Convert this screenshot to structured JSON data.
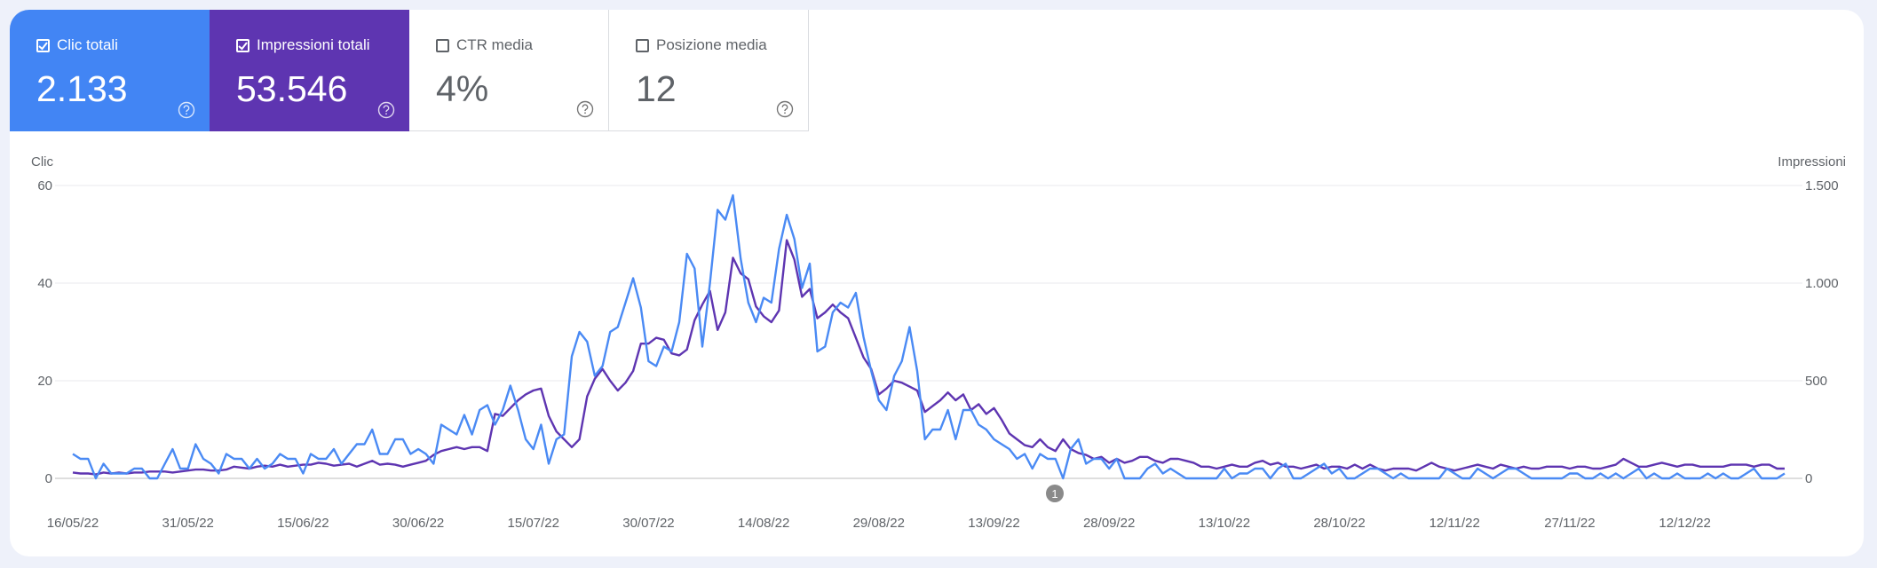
{
  "metrics": [
    {
      "label": "Clic totali",
      "value": "2.133",
      "checked": true,
      "color": "#4285f4"
    },
    {
      "label": "Impressioni totali",
      "value": "53.546",
      "checked": true,
      "color": "#5e35b1"
    },
    {
      "label": "CTR media",
      "value": "4%",
      "checked": false,
      "color": "#ffffff"
    },
    {
      "label": "Posizione media",
      "value": "12",
      "checked": false,
      "color": "#ffffff"
    }
  ],
  "chart_data": {
    "type": "line",
    "y_label": "Clic",
    "y2_label": "Impressioni",
    "annotation": "1",
    "categories": [
      "16/05/22",
      null,
      null,
      null,
      null,
      null,
      null,
      null,
      null,
      null,
      null,
      null,
      null,
      null,
      null,
      "31/05/22",
      null,
      null,
      null,
      null,
      null,
      null,
      null,
      null,
      null,
      null,
      null,
      null,
      null,
      null,
      "15/06/22",
      null,
      null,
      null,
      null,
      null,
      null,
      null,
      null,
      null,
      null,
      null,
      null,
      null,
      null,
      "30/06/22",
      null,
      null,
      null,
      null,
      null,
      null,
      null,
      null,
      null,
      null,
      null,
      null,
      null,
      null,
      "15/07/22",
      null,
      null,
      null,
      null,
      null,
      null,
      null,
      null,
      null,
      null,
      null,
      null,
      null,
      null,
      "30/07/22",
      null,
      null,
      null,
      null,
      null,
      null,
      null,
      null,
      null,
      null,
      null,
      null,
      null,
      null,
      "14/08/22",
      null,
      null,
      null,
      null,
      null,
      null,
      null,
      null,
      null,
      null,
      null,
      null,
      null,
      null,
      "29/08/22",
      null,
      null,
      null,
      null,
      null,
      null,
      null,
      null,
      null,
      null,
      null,
      null,
      null,
      null,
      "13/09/22",
      null,
      null,
      null,
      null,
      null,
      null,
      null,
      null,
      null,
      null,
      null,
      null,
      null,
      null,
      "28/09/22",
      null,
      null,
      null,
      null,
      null,
      null,
      null,
      null,
      null,
      null,
      null,
      null,
      null,
      null,
      "13/10/22",
      null,
      null,
      null,
      null,
      null,
      null,
      null,
      null,
      null,
      null,
      null,
      null,
      null,
      null,
      "28/10/22",
      null,
      null,
      null,
      null,
      null,
      null,
      null,
      null,
      null,
      null,
      null,
      null,
      null,
      null,
      "12/11/22",
      null,
      null,
      null,
      null,
      null,
      null,
      null,
      null,
      null,
      null,
      null,
      null,
      null,
      null,
      "27/11/22",
      null,
      null,
      null,
      null,
      null,
      null,
      null,
      null,
      null,
      null,
      null,
      null,
      null,
      null,
      "12/12/22",
      null,
      null,
      null,
      null,
      null,
      null,
      null,
      null,
      null,
      null,
      null,
      null,
      null
    ],
    "series": [
      {
        "name": "Clic",
        "color": "#4a8af4",
        "axis": "y",
        "values": [
          5,
          4,
          4,
          0,
          3,
          1,
          1,
          1,
          2,
          2,
          0,
          0,
          3,
          6,
          2,
          2,
          7,
          4,
          3,
          1,
          5,
          4,
          4,
          2,
          4,
          2,
          3,
          5,
          4,
          4,
          1,
          5,
          4,
          4,
          6,
          3,
          5,
          7,
          7,
          10,
          5,
          5,
          8,
          8,
          5,
          6,
          5,
          3,
          11,
          10,
          9,
          13,
          9,
          14,
          15,
          11,
          14,
          19,
          14,
          8,
          6,
          11,
          3,
          8,
          9,
          25,
          30,
          28,
          21,
          23,
          30,
          31,
          36,
          41,
          35,
          24,
          23,
          27,
          26,
          32,
          46,
          43,
          27,
          40,
          55,
          53,
          58,
          45,
          36,
          32,
          37,
          36,
          47,
          54,
          49,
          39,
          44,
          26,
          27,
          34,
          36,
          35,
          38,
          29,
          22,
          16,
          14,
          21,
          24,
          31,
          22,
          8,
          10,
          10,
          14,
          8,
          14,
          14,
          11,
          10,
          8,
          7,
          6,
          4,
          5,
          2,
          5,
          4,
          4,
          0,
          6,
          8,
          3,
          4,
          4,
          2,
          4,
          0,
          0,
          0,
          2,
          3,
          1,
          2,
          1,
          0,
          0,
          0,
          0,
          0,
          2,
          0,
          1,
          1,
          2,
          2,
          0,
          2,
          3,
          0,
          0,
          1,
          2,
          3,
          1,
          2,
          0,
          0,
          1,
          2,
          2,
          1,
          0,
          1,
          0,
          0,
          0,
          0,
          0,
          2,
          1,
          0,
          0,
          2,
          1,
          0,
          1,
          2,
          2,
          1,
          0,
          0,
          0,
          0,
          0,
          1,
          1,
          0,
          0,
          1,
          0,
          1,
          0,
          1,
          2,
          0,
          1,
          0,
          0,
          1,
          0,
          0,
          0,
          1,
          0,
          1,
          0,
          0,
          1,
          2,
          0,
          0,
          0,
          1
        ]
      },
      {
        "name": "Impressioni",
        "color": "#5e35b1",
        "axis": "y2",
        "values": [
          30,
          25,
          25,
          20,
          30,
          25,
          30,
          25,
          30,
          30,
          35,
          35,
          35,
          30,
          35,
          40,
          45,
          45,
          40,
          40,
          45,
          60,
          55,
          50,
          60,
          65,
          60,
          70,
          60,
          65,
          70,
          70,
          80,
          75,
          65,
          70,
          75,
          60,
          75,
          90,
          70,
          75,
          70,
          60,
          70,
          80,
          90,
          120,
          140,
          150,
          160,
          150,
          160,
          160,
          140,
          330,
          320,
          360,
          400,
          430,
          450,
          460,
          320,
          240,
          200,
          160,
          200,
          420,
          510,
          560,
          500,
          450,
          490,
          550,
          690,
          690,
          720,
          710,
          640,
          630,
          660,
          810,
          890,
          960,
          760,
          850,
          1130,
          1050,
          1020,
          880,
          830,
          800,
          860,
          1220,
          1120,
          930,
          970,
          820,
          850,
          890,
          850,
          820,
          720,
          620,
          560,
          430,
          460,
          500,
          490,
          470,
          450,
          340,
          370,
          400,
          440,
          400,
          430,
          350,
          380,
          330,
          360,
          300,
          230,
          200,
          170,
          160,
          200,
          160,
          140,
          200,
          150,
          130,
          120,
          100,
          110,
          80,
          100,
          80,
          90,
          110,
          110,
          90,
          80,
          100,
          100,
          90,
          80,
          60,
          60,
          50,
          60,
          70,
          60,
          60,
          80,
          90,
          70,
          80,
          60,
          60,
          50,
          60,
          70,
          50,
          60,
          60,
          50,
          70,
          50,
          70,
          50,
          40,
          50,
          50,
          50,
          40,
          60,
          80,
          60,
          50,
          40,
          50,
          60,
          70,
          60,
          50,
          70,
          60,
          50,
          60,
          50,
          50,
          60,
          60,
          60,
          50,
          60,
          60,
          50,
          50,
          60,
          70,
          100,
          80,
          60,
          60,
          70,
          80,
          70,
          60,
          70,
          70,
          60,
          60,
          60,
          60,
          70,
          70,
          70,
          60,
          70,
          70,
          50,
          50
        ]
      }
    ],
    "ylim": [
      0,
      60
    ],
    "yticks": [
      0,
      20,
      40,
      60
    ],
    "y2lim": [
      0,
      1500
    ],
    "y2ticks": [
      0,
      500,
      {
        "value": 1000,
        "label": "1.000"
      },
      {
        "value": 1500,
        "label": "1.500"
      }
    ],
    "grid": true
  }
}
